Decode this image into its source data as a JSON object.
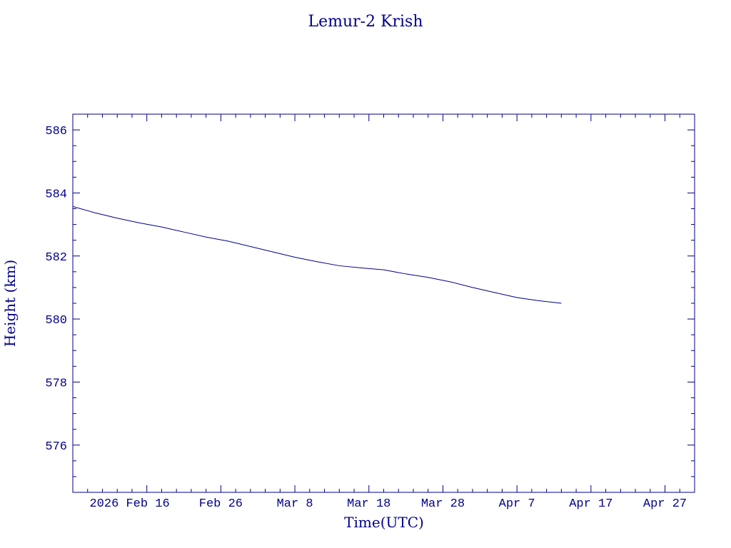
{
  "chart_data": {
    "type": "line",
    "title": "Lemur-2 Krish",
    "xlabel": "Time(UTC)",
    "ylabel": "Height (km)",
    "xlim": [
      "2026-02-06",
      "2026-05-01"
    ],
    "ylim": [
      574.5,
      586.5
    ],
    "x_ticks": [
      "2026-02-16",
      "2026-02-26",
      "2026-03-08",
      "2026-03-18",
      "2026-03-28",
      "2026-04-07",
      "2026-04-17",
      "2026-04-27"
    ],
    "x_tick_labels": [
      "2026 Feb 16",
      "Feb 26",
      "Mar  8",
      "Mar 18",
      "Mar 28",
      "Apr  7",
      "Apr 17",
      "Apr 27"
    ],
    "y_ticks": [
      576,
      578,
      580,
      582,
      584,
      586
    ],
    "y_tick_labels": [
      "576",
      "578",
      "580",
      "582",
      "584",
      "586"
    ],
    "grid": false,
    "colors": {
      "axis": "#00008b",
      "line": "#00008b"
    },
    "series": [
      {
        "x": [
          "2026-02-06",
          "2026-02-09",
          "2026-02-12",
          "2026-02-15",
          "2026-02-18",
          "2026-02-21",
          "2026-02-24",
          "2026-02-27",
          "2026-03-02",
          "2026-03-05",
          "2026-03-08",
          "2026-03-11",
          "2026-03-14",
          "2026-03-17",
          "2026-03-20",
          "2026-03-23",
          "2026-03-26",
          "2026-03-29",
          "2026-04-01",
          "2026-04-04",
          "2026-04-07",
          "2026-04-10",
          "2026-04-13"
        ],
        "y": [
          583.57,
          583.37,
          583.2,
          583.05,
          582.92,
          582.76,
          582.6,
          582.47,
          582.3,
          582.13,
          581.96,
          581.82,
          581.69,
          581.62,
          581.56,
          581.43,
          581.32,
          581.18,
          581.0,
          580.84,
          580.68,
          580.58,
          580.5
        ]
      }
    ]
  }
}
